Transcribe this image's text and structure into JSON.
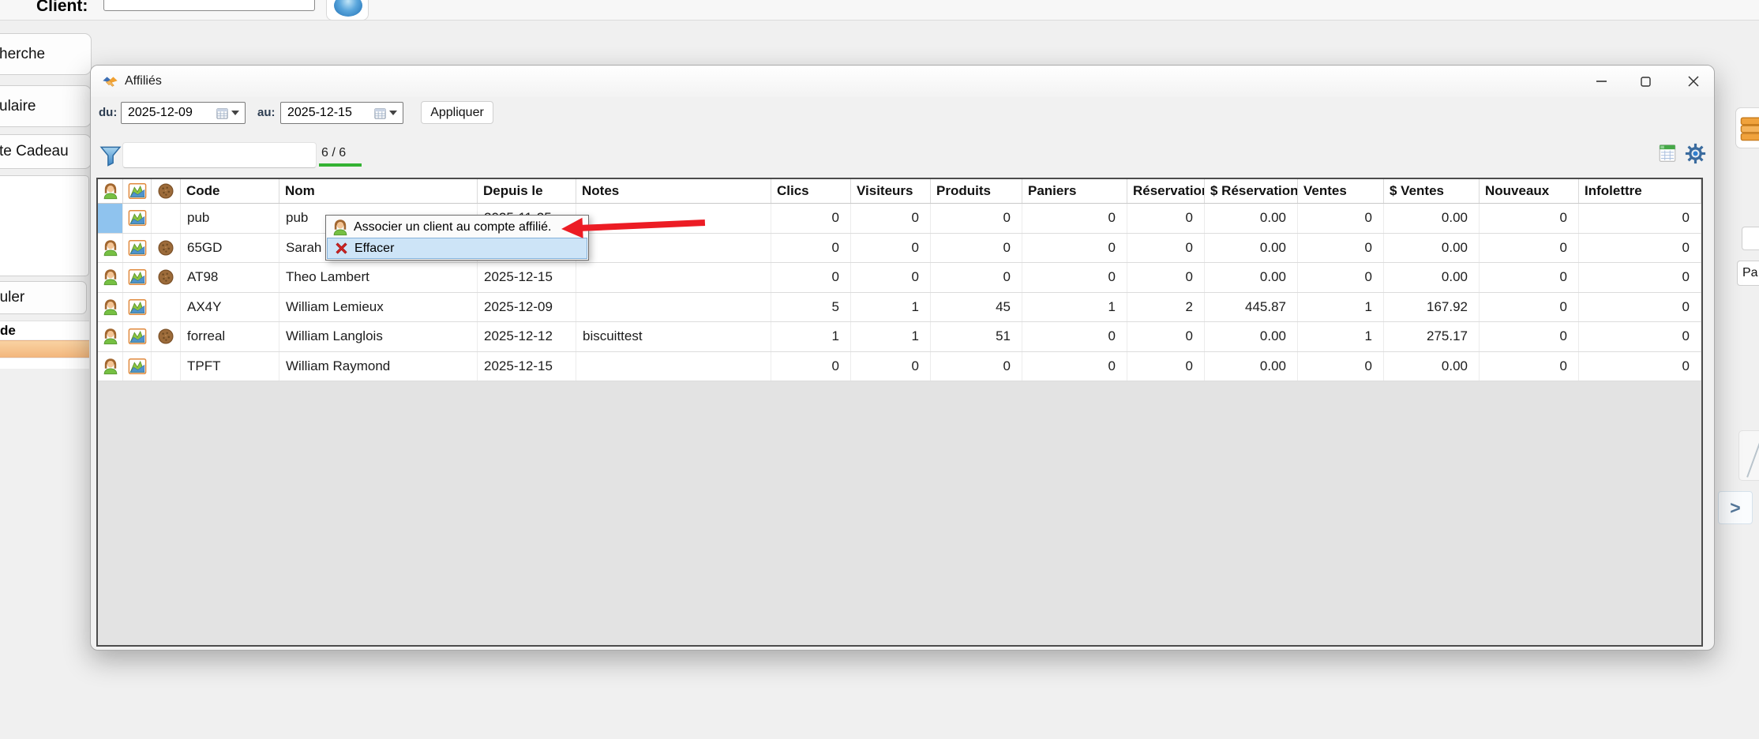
{
  "background": {
    "client_label": "Client:",
    "tabs": [
      "herche",
      "ulaire",
      "te Cadeau"
    ],
    "annuler_label": "nuler",
    "de_label": "de",
    "right_panel_label": "Pa",
    "expand_chevron": ">"
  },
  "dialog": {
    "title": "Affiliés",
    "filters": {
      "du_label": "du:",
      "du_value": "2025-12-09",
      "au_label": "au:",
      "au_value": "2025-12-15",
      "apply_label": "Appliquer"
    },
    "search": {
      "value": "",
      "count": "6 / 6"
    },
    "icons": {
      "filter": "funnel-icon",
      "export": "spreadsheet-export-icon",
      "settings": "gear-icon",
      "title": "handshake-icon"
    },
    "table": {
      "icon_columns": [
        "person-icon",
        "chart-icon",
        "cookie-icon"
      ],
      "columns": [
        "Code",
        "Nom",
        "Depuis le",
        "Notes",
        "Clics",
        "Visiteurs",
        "Produits",
        "Paniers",
        "Réservations",
        "$ Réservations",
        "Ventes",
        "$ Ventes",
        "Nouveaux",
        "Infolettre"
      ],
      "rows": [
        {
          "selected": true,
          "person": false,
          "chart": true,
          "cookie": false,
          "code": "pub",
          "nom": "pub",
          "depuis": "2025-11-25",
          "notes": "",
          "clics": "0",
          "visiteurs": "0",
          "produits": "0",
          "paniers": "0",
          "reservations": "0",
          "d_reservations": "0.00",
          "ventes": "0",
          "d_ventes": "0.00",
          "nouveaux": "0",
          "infolettre": "0"
        },
        {
          "selected": false,
          "person": true,
          "chart": true,
          "cookie": true,
          "code": "65GD",
          "nom": "Sarah",
          "depuis": "",
          "notes": "",
          "clics": "0",
          "visiteurs": "0",
          "produits": "0",
          "paniers": "0",
          "reservations": "0",
          "d_reservations": "0.00",
          "ventes": "0",
          "d_ventes": "0.00",
          "nouveaux": "0",
          "infolettre": "0"
        },
        {
          "selected": false,
          "person": true,
          "chart": true,
          "cookie": true,
          "code": "AT98",
          "nom": "Theo Lambert",
          "depuis": "2025-12-15",
          "notes": "",
          "clics": "0",
          "visiteurs": "0",
          "produits": "0",
          "paniers": "0",
          "reservations": "0",
          "d_reservations": "0.00",
          "ventes": "0",
          "d_ventes": "0.00",
          "nouveaux": "0",
          "infolettre": "0"
        },
        {
          "selected": false,
          "person": true,
          "chart": true,
          "cookie": false,
          "code": "AX4Y",
          "nom": "William Lemieux",
          "depuis": "2025-12-09",
          "notes": "",
          "clics": "5",
          "visiteurs": "1",
          "produits": "45",
          "paniers": "1",
          "reservations": "2",
          "d_reservations": "445.87",
          "ventes": "1",
          "d_ventes": "167.92",
          "nouveaux": "0",
          "infolettre": "0"
        },
        {
          "selected": false,
          "person": true,
          "chart": true,
          "cookie": true,
          "code": "forreal",
          "nom": "William Langlois",
          "depuis": "2025-12-12",
          "notes": "biscuittest",
          "clics": "1",
          "visiteurs": "1",
          "produits": "51",
          "paniers": "0",
          "reservations": "0",
          "d_reservations": "0.00",
          "ventes": "1",
          "d_ventes": "275.17",
          "nouveaux": "0",
          "infolettre": "0"
        },
        {
          "selected": false,
          "person": true,
          "chart": true,
          "cookie": false,
          "code": "TPFT",
          "nom": "William Raymond",
          "depuis": "2025-12-15",
          "notes": "",
          "clics": "0",
          "visiteurs": "0",
          "produits": "0",
          "paniers": "0",
          "reservations": "0",
          "d_reservations": "0.00",
          "ventes": "0",
          "d_ventes": "0.00",
          "nouveaux": "0",
          "infolettre": "0"
        }
      ]
    }
  },
  "context_menu": {
    "items": [
      {
        "icon": "person-icon",
        "label": "Associer un client au compte affilié.",
        "highlighted": false
      },
      {
        "icon": "delete-x-icon",
        "label": "Effacer",
        "highlighted": true
      }
    ]
  },
  "annotation": {
    "type": "red-arrow"
  },
  "colors": {
    "selected_cell": "#8fc3ee",
    "menu_highlight": "#cde4f7",
    "count_underline_green": "#34b233",
    "arrow_red": "#ec1c24",
    "orange_row": "#f3b87e"
  }
}
